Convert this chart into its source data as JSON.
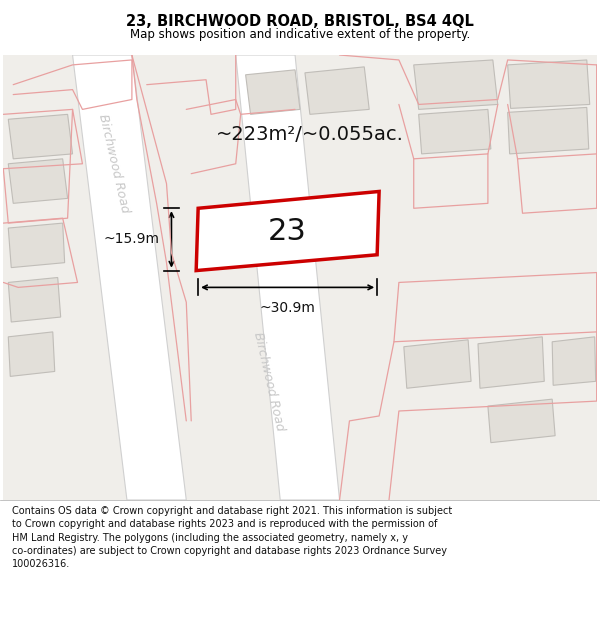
{
  "title": "23, BIRCHWOOD ROAD, BRISTOL, BS4 4QL",
  "subtitle": "Map shows position and indicative extent of the property.",
  "footer": "Contains OS data © Crown copyright and database right 2021. This information is subject\nto Crown copyright and database rights 2023 and is reproduced with the permission of\nHM Land Registry. The polygons (including the associated geometry, namely x, y\nco-ordinates) are subject to Crown copyright and database rights 2023 Ordnance Survey\n100026316.",
  "area_label": "~223m²/~0.055ac.",
  "width_label": "~30.9m",
  "height_label": "~15.9m",
  "number_label": "23",
  "map_bg": "#f0eeea",
  "road_color": "#ffffff",
  "road_outline_color": "#d0d0d0",
  "building_fill": "#e2dfd9",
  "building_outline": "#c0bdb8",
  "pink_line_color": "#e8a0a0",
  "red_plot_color": "#cc0000",
  "plot_fill": "#ffffff",
  "title_fontsize": 10.5,
  "subtitle_fontsize": 8.5,
  "footer_fontsize": 7,
  "area_fontsize": 14,
  "number_fontsize": 22,
  "annotation_fontsize": 10,
  "road_label_color": "#c8c8c8",
  "road_label_fontsize": 9
}
